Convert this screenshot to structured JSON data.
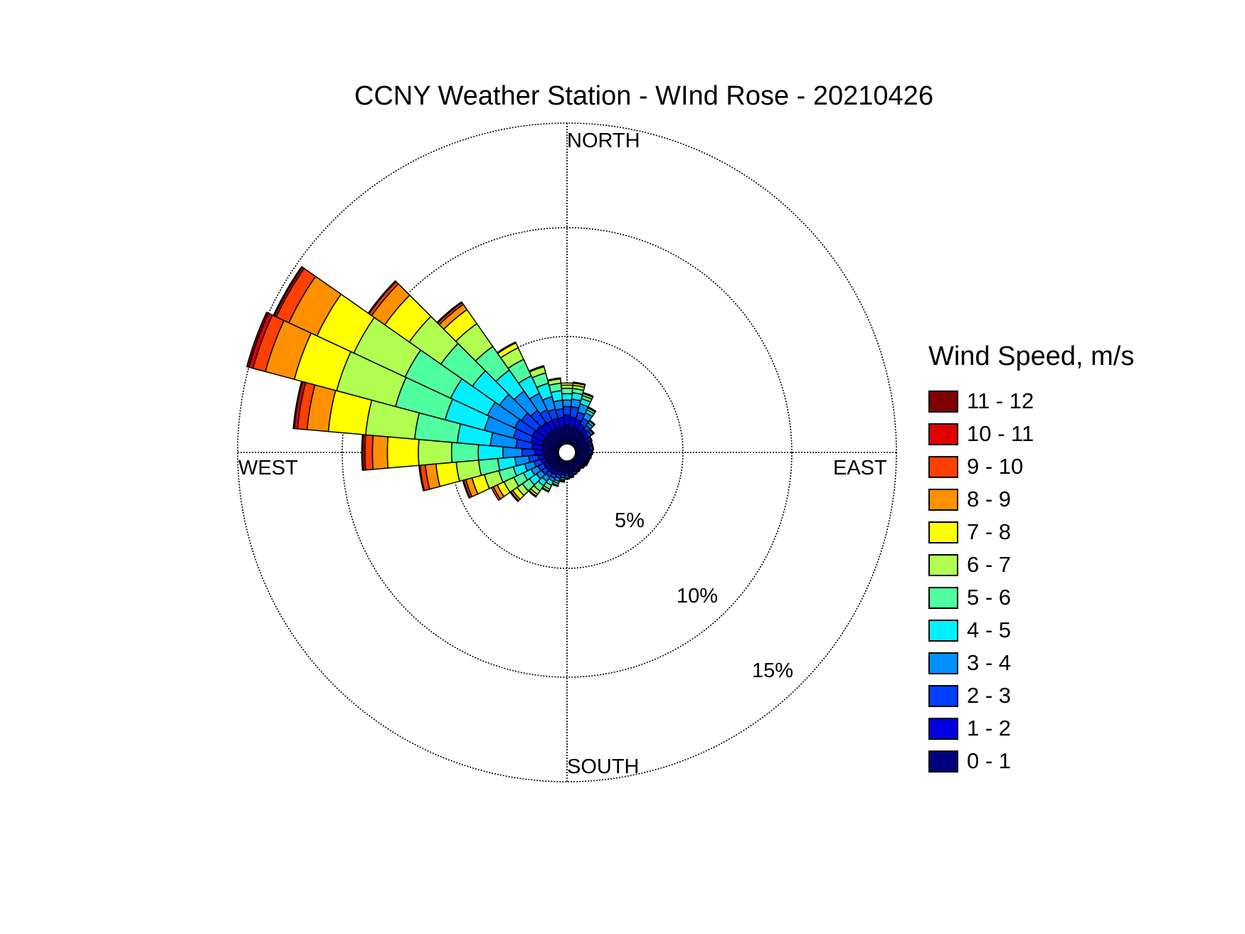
{
  "chart": {
    "title": "CCNY Weather Station - WInd Rose - 20210426",
    "direction_labels": {
      "north": "NORTH",
      "south": "SOUTH",
      "east": "EAST",
      "west": "WEST"
    },
    "ring_labels": [
      "5%",
      "10%",
      "15%"
    ]
  },
  "legend": {
    "title": "Wind Speed, m/s",
    "items": [
      {
        "label": "11 - 12",
        "color": "#800000"
      },
      {
        "label": "10 - 11",
        "color": "#e00000"
      },
      {
        "label": "9 - 10",
        "color": "#ff4000"
      },
      {
        "label": "8 - 9",
        "color": "#ff9000"
      },
      {
        "label": "7 - 8",
        "color": "#ffff00"
      },
      {
        "label": "6 - 7",
        "color": "#b0ff50"
      },
      {
        "label": "5 - 6",
        "color": "#50ffa0"
      },
      {
        "label": "4 - 5",
        "color": "#00f0ff"
      },
      {
        "label": "3 - 4",
        "color": "#0090ff"
      },
      {
        "label": "2 - 3",
        "color": "#0040ff"
      },
      {
        "label": "1 - 2",
        "color": "#0000e0"
      },
      {
        "label": "0 - 1",
        "color": "#000080"
      }
    ]
  },
  "chart_data": {
    "type": "wind-rose",
    "title": "CCNY Weather Station - WInd Rose - 20210426",
    "rings_percent": [
      5,
      10,
      15
    ],
    "max_percent": 15,
    "sector_width_deg": 10,
    "speed_bins": [
      "0 - 1",
      "1 - 2",
      "2 - 3",
      "3 - 4",
      "4 - 5",
      "5 - 6",
      "6 - 7",
      "7 - 8",
      "8 - 9",
      "9 - 10",
      "10 - 11",
      "11 - 12"
    ],
    "colors": [
      "#000080",
      "#0000e0",
      "#0040ff",
      "#0090ff",
      "#00f0ff",
      "#50ffa0",
      "#b0ff50",
      "#ffff00",
      "#ff9000",
      "#ff4000",
      "#e00000",
      "#800000"
    ],
    "sectors": [
      {
        "direction_deg": 0,
        "cumulative_percent": [
          0.85,
          1.35,
          1.75,
          2.05,
          2.35,
          2.6,
          2.75,
          2.85,
          2.85,
          2.85,
          2.85,
          2.85
        ]
      },
      {
        "direction_deg": 10,
        "cumulative_percent": [
          0.8,
          1.25,
          1.75,
          2.1,
          2.4,
          2.6,
          2.75,
          2.85,
          2.9,
          2.9,
          2.9,
          2.9
        ]
      },
      {
        "direction_deg": 20,
        "cumulative_percent": [
          0.8,
          1.2,
          1.55,
          1.95,
          2.2,
          2.35,
          2.45,
          2.5,
          2.5,
          2.5,
          2.5,
          2.5
        ]
      },
      {
        "direction_deg": 30,
        "cumulative_percent": [
          0.75,
          1.05,
          1.35,
          1.65,
          1.8,
          1.9,
          1.95,
          1.95,
          1.95,
          1.95,
          1.95,
          1.95
        ]
      },
      {
        "direction_deg": 40,
        "cumulative_percent": [
          0.7,
          0.95,
          1.15,
          1.3,
          1.4,
          1.45,
          1.45,
          1.45,
          1.45,
          1.45,
          1.45,
          1.45
        ]
      },
      {
        "direction_deg": 50,
        "cumulative_percent": [
          0.65,
          0.85,
          1.0,
          1.1,
          1.15,
          1.15,
          1.15,
          1.15,
          1.15,
          1.15,
          1.15,
          1.15
        ]
      },
      {
        "direction_deg": 60,
        "cumulative_percent": [
          0.6,
          0.75,
          0.85,
          0.9,
          0.9,
          0.9,
          0.9,
          0.9,
          0.9,
          0.9,
          0.9,
          0.9
        ]
      },
      {
        "direction_deg": 70,
        "cumulative_percent": [
          0.6,
          0.7,
          0.8,
          0.85,
          0.85,
          0.85,
          0.85,
          0.85,
          0.85,
          0.85,
          0.85,
          0.85
        ]
      },
      {
        "direction_deg": 80,
        "cumulative_percent": [
          0.6,
          0.7,
          0.8,
          0.85,
          0.85,
          0.85,
          0.85,
          0.85,
          0.85,
          0.85,
          0.85,
          0.85
        ]
      },
      {
        "direction_deg": 90,
        "cumulative_percent": [
          0.55,
          0.65,
          0.75,
          0.8,
          0.8,
          0.8,
          0.8,
          0.8,
          0.8,
          0.8,
          0.8,
          0.8
        ]
      },
      {
        "direction_deg": 100,
        "cumulative_percent": [
          0.55,
          0.65,
          0.7,
          0.75,
          0.75,
          0.75,
          0.75,
          0.75,
          0.75,
          0.75,
          0.75,
          0.75
        ]
      },
      {
        "direction_deg": 110,
        "cumulative_percent": [
          0.55,
          0.6,
          0.65,
          0.7,
          0.7,
          0.7,
          0.7,
          0.7,
          0.7,
          0.7,
          0.7,
          0.7
        ]
      },
      {
        "direction_deg": 120,
        "cumulative_percent": [
          0.55,
          0.6,
          0.65,
          0.7,
          0.7,
          0.7,
          0.7,
          0.7,
          0.7,
          0.7,
          0.7,
          0.7
        ]
      },
      {
        "direction_deg": 130,
        "cumulative_percent": [
          0.55,
          0.6,
          0.65,
          0.65,
          0.65,
          0.65,
          0.65,
          0.65,
          0.65,
          0.65,
          0.65,
          0.65
        ]
      },
      {
        "direction_deg": 140,
        "cumulative_percent": [
          0.5,
          0.55,
          0.6,
          0.6,
          0.6,
          0.6,
          0.6,
          0.6,
          0.6,
          0.6,
          0.6,
          0.6
        ]
      },
      {
        "direction_deg": 150,
        "cumulative_percent": [
          0.5,
          0.55,
          0.6,
          0.65,
          0.65,
          0.65,
          0.65,
          0.65,
          0.65,
          0.65,
          0.65,
          0.65
        ]
      },
      {
        "direction_deg": 160,
        "cumulative_percent": [
          0.5,
          0.55,
          0.65,
          0.7,
          0.7,
          0.7,
          0.7,
          0.7,
          0.7,
          0.7,
          0.7,
          0.7
        ]
      },
      {
        "direction_deg": 170,
        "cumulative_percent": [
          0.5,
          0.6,
          0.7,
          0.75,
          0.8,
          0.8,
          0.8,
          0.8,
          0.8,
          0.8,
          0.8,
          0.8
        ]
      },
      {
        "direction_deg": 180,
        "cumulative_percent": [
          0.5,
          0.6,
          0.7,
          0.8,
          0.85,
          0.85,
          0.85,
          0.85,
          0.85,
          0.85,
          0.85,
          0.85
        ]
      },
      {
        "direction_deg": 190,
        "cumulative_percent": [
          0.55,
          0.65,
          0.8,
          0.9,
          0.95,
          1.0,
          1.0,
          1.0,
          1.0,
          1.0,
          1.0,
          1.0
        ]
      },
      {
        "direction_deg": 200,
        "cumulative_percent": [
          0.55,
          0.7,
          0.85,
          1.0,
          1.1,
          1.2,
          1.25,
          1.25,
          1.25,
          1.25,
          1.25,
          1.25
        ]
      },
      {
        "direction_deg": 210,
        "cumulative_percent": [
          0.6,
          0.75,
          0.95,
          1.1,
          1.3,
          1.5,
          1.6,
          1.65,
          1.65,
          1.65,
          1.65,
          1.65
        ]
      },
      {
        "direction_deg": 220,
        "cumulative_percent": [
          0.6,
          0.8,
          1.0,
          1.25,
          1.5,
          1.8,
          2.0,
          2.1,
          2.15,
          2.15,
          2.15,
          2.15
        ]
      },
      {
        "direction_deg": 230,
        "cumulative_percent": [
          0.6,
          0.8,
          1.05,
          1.35,
          1.75,
          2.15,
          2.45,
          2.7,
          2.8,
          2.85,
          2.85,
          2.85
        ]
      },
      {
        "direction_deg": 240,
        "cumulative_percent": [
          0.6,
          0.8,
          1.1,
          1.45,
          1.85,
          2.35,
          2.85,
          3.2,
          3.4,
          3.5,
          3.5,
          3.5
        ]
      },
      {
        "direction_deg": 250,
        "cumulative_percent": [
          0.6,
          0.85,
          1.2,
          1.65,
          2.2,
          2.9,
          3.6,
          4.2,
          4.5,
          4.6,
          4.65,
          4.65
        ]
      },
      {
        "direction_deg": 260,
        "cumulative_percent": [
          0.65,
          0.95,
          1.4,
          2.05,
          2.85,
          3.75,
          4.8,
          5.75,
          6.25,
          6.5,
          6.55,
          6.55
        ]
      },
      {
        "direction_deg": 270,
        "cumulative_percent": [
          0.7,
          1.1,
          1.7,
          2.6,
          3.75,
          5.0,
          6.55,
          8.0,
          8.7,
          9.05,
          9.15,
          9.2
        ]
      },
      {
        "direction_deg": 280,
        "cumulative_percent": [
          0.75,
          1.25,
          2.0,
          3.2,
          4.75,
          6.75,
          9.05,
          10.8,
          11.8,
          12.25,
          12.4,
          12.45
        ]
      },
      {
        "direction_deg": 290,
        "cumulative_percent": [
          0.8,
          1.35,
          2.2,
          3.6,
          5.5,
          7.9,
          10.75,
          12.8,
          14.2,
          14.8,
          15.0,
          15.1
        ]
      },
      {
        "direction_deg": 300,
        "cumulative_percent": [
          0.8,
          1.4,
          2.3,
          3.7,
          5.6,
          7.95,
          10.6,
          12.5,
          13.95,
          14.6,
          14.7,
          14.75
        ]
      },
      {
        "direction_deg": 310,
        "cumulative_percent": [
          0.8,
          1.35,
          2.2,
          3.45,
          5.0,
          6.8,
          8.6,
          10.0,
          10.75,
          10.9,
          10.95,
          10.95
        ]
      },
      {
        "direction_deg": 320,
        "cumulative_percent": [
          0.8,
          1.3,
          2.0,
          3.1,
          4.3,
          5.65,
          6.95,
          7.75,
          8.05,
          8.15,
          8.2,
          8.2
        ]
      },
      {
        "direction_deg": 330,
        "cumulative_percent": [
          0.8,
          1.25,
          1.8,
          2.65,
          3.55,
          4.4,
          5.0,
          5.25,
          5.3,
          5.3,
          5.3,
          5.3
        ]
      },
      {
        "direction_deg": 340,
        "cumulative_percent": [
          0.8,
          1.25,
          1.7,
          2.3,
          2.95,
          3.45,
          3.75,
          3.8,
          3.8,
          3.8,
          3.8,
          3.8
        ]
      },
      {
        "direction_deg": 350,
        "cumulative_percent": [
          0.8,
          1.25,
          1.65,
          2.05,
          2.5,
          2.85,
          3.05,
          3.1,
          3.1,
          3.1,
          3.1,
          3.1
        ]
      }
    ]
  }
}
